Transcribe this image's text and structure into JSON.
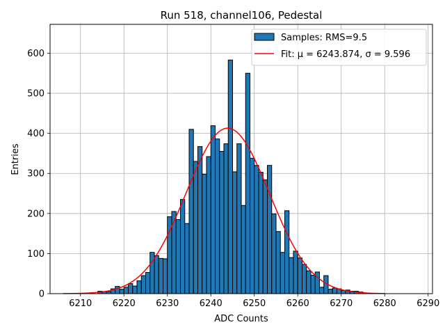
{
  "chart_data": {
    "type": "bar",
    "title": "Run 518, channel106, Pedestal",
    "xlabel": "ADC Counts",
    "ylabel": "Entries",
    "xlim": [
      6203,
      6291
    ],
    "ylim": [
      0,
      672
    ],
    "grid": true,
    "legend_position": "top-right",
    "xticks": [
      6210,
      6220,
      6230,
      6240,
      6250,
      6260,
      6270,
      6280,
      6290
    ],
    "yticks": [
      0,
      100,
      200,
      300,
      400,
      500,
      600
    ],
    "bin_width": 1,
    "bins": [
      [
        6214,
        6
      ],
      [
        6215,
        5
      ],
      [
        6216,
        5
      ],
      [
        6217,
        12
      ],
      [
        6218,
        18
      ],
      [
        6219,
        11
      ],
      [
        6220,
        16
      ],
      [
        6221,
        25
      ],
      [
        6222,
        19
      ],
      [
        6223,
        32
      ],
      [
        6224,
        45
      ],
      [
        6225,
        53
      ],
      [
        6226,
        103
      ],
      [
        6227,
        95
      ],
      [
        6228,
        88
      ],
      [
        6229,
        87
      ],
      [
        6230,
        192
      ],
      [
        6231,
        205
      ],
      [
        6232,
        185
      ],
      [
        6233,
        235
      ],
      [
        6234,
        175
      ],
      [
        6235,
        410
      ],
      [
        6236,
        330
      ],
      [
        6237,
        367
      ],
      [
        6238,
        298
      ],
      [
        6239,
        342
      ],
      [
        6240,
        419
      ],
      [
        6241,
        386
      ],
      [
        6242,
        355
      ],
      [
        6243,
        374
      ],
      [
        6244,
        583
      ],
      [
        6245,
        304
      ],
      [
        6246,
        374
      ],
      [
        6247,
        220
      ],
      [
        6248,
        550
      ],
      [
        6249,
        338
      ],
      [
        6250,
        320
      ],
      [
        6251,
        303
      ],
      [
        6252,
        284
      ],
      [
        6253,
        320
      ],
      [
        6254,
        199
      ],
      [
        6255,
        155
      ],
      [
        6256,
        103
      ],
      [
        6257,
        207
      ],
      [
        6258,
        90
      ],
      [
        6259,
        106
      ],
      [
        6260,
        89
      ],
      [
        6261,
        73
      ],
      [
        6262,
        57
      ],
      [
        6263,
        46
      ],
      [
        6264,
        54
      ],
      [
        6265,
        16
      ],
      [
        6266,
        45
      ],
      [
        6267,
        11
      ],
      [
        6268,
        14
      ],
      [
        6269,
        12
      ],
      [
        6270,
        8
      ],
      [
        6271,
        9
      ],
      [
        6272,
        6
      ],
      [
        6273,
        6
      ],
      [
        6274,
        4
      ]
    ],
    "series": [
      {
        "name": "Samples: RMS=9.5",
        "type": "histogram",
        "color": "#1f77b4",
        "edgecolor": "#000000"
      },
      {
        "name": "Fit: μ = 6243.874, σ = 9.596",
        "type": "line",
        "color": "#ff0000",
        "mu": 6243.874,
        "sigma": 9.596,
        "amplitude": 413,
        "x_range": [
          6206,
          6280
        ]
      }
    ]
  }
}
